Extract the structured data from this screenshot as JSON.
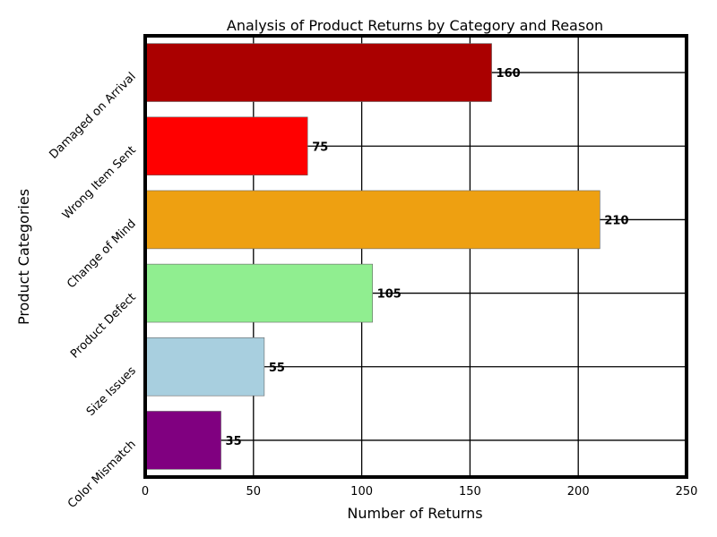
{
  "chart_data": {
    "type": "bar",
    "orientation": "horizontal",
    "title": "Analysis of Product Returns by Category and Reason",
    "xlabel": "Number of Returns",
    "ylabel": "Product Categories",
    "xlim": [
      0,
      250
    ],
    "xticks": [
      0,
      50,
      100,
      150,
      200,
      250
    ],
    "grid": true,
    "categories": [
      "Damaged on Arrival",
      "Wrong Item Sent",
      "Change of Mind",
      "Product Defect",
      "Size Issues",
      "Color Mismatch"
    ],
    "values": [
      160,
      75,
      210,
      105,
      55,
      35
    ],
    "colors": [
      "#aa0000",
      "#ff0000",
      "#eea011",
      "#90ee90",
      "#a8cfdf",
      "#800080"
    ],
    "data_labels": [
      "160",
      "75",
      "210",
      "105",
      "55",
      "35"
    ]
  }
}
